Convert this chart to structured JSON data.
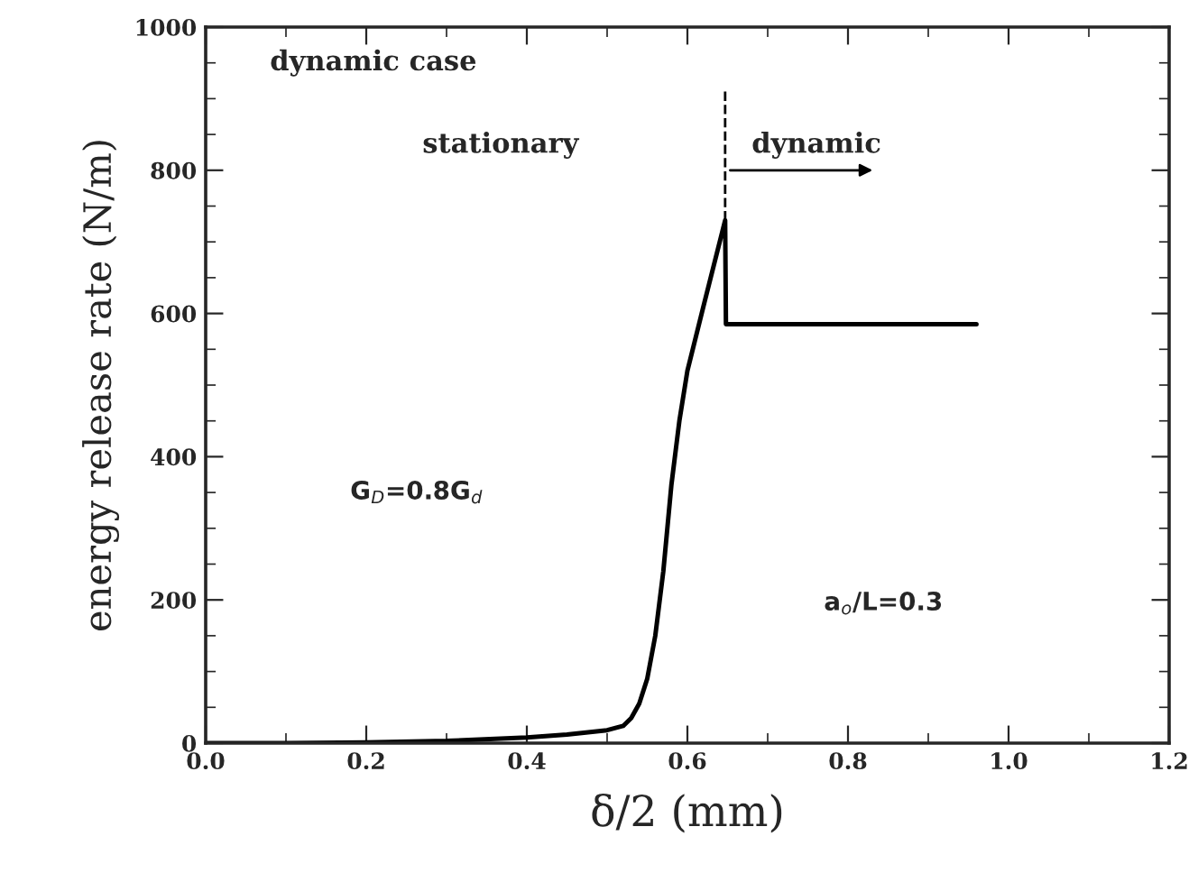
{
  "chart_data": {
    "type": "line",
    "xlabel": "δ/2 (mm)",
    "ylabel": "energy release rate (N/m)",
    "x": [
      0,
      0.1,
      0.2,
      0.3,
      0.4,
      0.45,
      0.5,
      0.52,
      0.53,
      0.54,
      0.55,
      0.56,
      0.57,
      0.58,
      0.59,
      0.6,
      0.62,
      0.647,
      0.648,
      0.96
    ],
    "series": [
      {
        "color": "#000000",
        "values": [
          0,
          0,
          1,
          3,
          8,
          12,
          18,
          24,
          35,
          55,
          90,
          150,
          240,
          360,
          450,
          520,
          610,
          730,
          585,
          585
        ]
      }
    ],
    "xlim": [
      0,
      1.2
    ],
    "ylim": [
      0,
      1000
    ],
    "xticks": [
      {
        "value": 0,
        "label": "0.0"
      },
      0.2,
      0.4,
      0.6,
      0.8,
      {
        "value": 1,
        "label": "1.0"
      },
      1.2
    ],
    "yticks": [
      0,
      200,
      400,
      600,
      800,
      1000
    ],
    "ref_lines": [
      {
        "axis": "x",
        "value": 0.647,
        "line_style": "dashed"
      }
    ],
    "annotations": [
      "dynamic case",
      "stationary",
      "dynamic",
      "G$_{D}$=0.8G$_{d}$",
      "a$_{o}$/L=0.3"
    ],
    "grid": false,
    "legend": false,
    "line_style": "solid",
    "marker": "none"
  }
}
